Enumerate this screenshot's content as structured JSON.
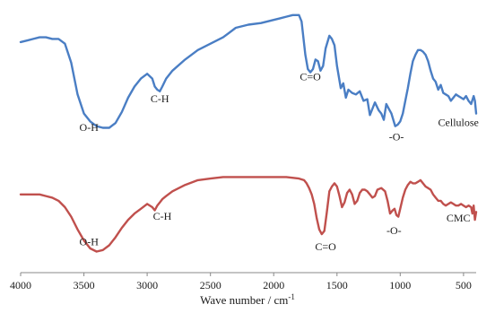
{
  "chart_data": {
    "type": "line",
    "title": "",
    "xlabel": "Wave number / cm",
    "xlabel_superscript": "-1",
    "ylabel": "",
    "xlim": [
      4000,
      400
    ],
    "x_reversed": true,
    "xticks": [
      4000,
      3500,
      3000,
      2500,
      2000,
      1500,
      1000,
      500
    ],
    "grid": false,
    "legend": "none",
    "series": [
      {
        "name": "Cellulose",
        "color": "#4a7ec4",
        "label_at": [
          560,
          0.22
        ],
        "x": [
          4000,
          3950,
          3900,
          3850,
          3800,
          3750,
          3700,
          3650,
          3600,
          3550,
          3500,
          3450,
          3400,
          3350,
          3300,
          3250,
          3200,
          3150,
          3100,
          3050,
          3000,
          2960,
          2940,
          2920,
          2900,
          2880,
          2850,
          2800,
          2700,
          2600,
          2500,
          2400,
          2300,
          2200,
          2100,
          2000,
          1950,
          1900,
          1850,
          1800,
          1780,
          1750,
          1730,
          1710,
          1690,
          1670,
          1650,
          1630,
          1610,
          1590,
          1560,
          1540,
          1520,
          1500,
          1470,
          1450,
          1430,
          1410,
          1380,
          1350,
          1320,
          1290,
          1260,
          1240,
          1200,
          1170,
          1150,
          1130,
          1110,
          1090,
          1070,
          1055,
          1040,
          1020,
          1000,
          980,
          960,
          940,
          920,
          900,
          880,
          860,
          840,
          820,
          800,
          780,
          760,
          740,
          720,
          700,
          680,
          660,
          640,
          620,
          600,
          580,
          560,
          540,
          520,
          500,
          480,
          460,
          440,
          420,
          410,
          400
        ],
        "y": [
          0.75,
          0.76,
          0.77,
          0.78,
          0.78,
          0.77,
          0.77,
          0.74,
          0.62,
          0.42,
          0.3,
          0.25,
          0.22,
          0.21,
          0.21,
          0.24,
          0.31,
          0.4,
          0.47,
          0.52,
          0.55,
          0.52,
          0.47,
          0.45,
          0.44,
          0.47,
          0.52,
          0.57,
          0.64,
          0.7,
          0.74,
          0.78,
          0.84,
          0.86,
          0.87,
          0.89,
          0.9,
          0.91,
          0.92,
          0.92,
          0.88,
          0.67,
          0.58,
          0.56,
          0.58,
          0.64,
          0.63,
          0.57,
          0.6,
          0.71,
          0.79,
          0.77,
          0.73,
          0.6,
          0.46,
          0.49,
          0.4,
          0.45,
          0.43,
          0.42,
          0.44,
          0.38,
          0.39,
          0.29,
          0.37,
          0.32,
          0.3,
          0.26,
          0.36,
          0.33,
          0.3,
          0.26,
          0.22,
          0.23,
          0.25,
          0.3,
          0.38,
          0.46,
          0.55,
          0.63,
          0.67,
          0.7,
          0.7,
          0.69,
          0.67,
          0.63,
          0.57,
          0.52,
          0.5,
          0.45,
          0.48,
          0.43,
          0.42,
          0.41,
          0.38,
          0.4,
          0.42,
          0.41,
          0.4,
          0.39,
          0.41,
          0.38,
          0.36,
          0.41,
          0.38,
          0.3
        ]
      },
      {
        "name": "CMC",
        "color": "#c0504d",
        "label_at": [
          560,
          -0.42
        ],
        "x": [
          4000,
          3950,
          3900,
          3850,
          3800,
          3750,
          3700,
          3650,
          3600,
          3550,
          3500,
          3450,
          3400,
          3350,
          3300,
          3250,
          3200,
          3150,
          3100,
          3050,
          3000,
          2960,
          2940,
          2920,
          2900,
          2880,
          2850,
          2800,
          2700,
          2600,
          2500,
          2400,
          2300,
          2200,
          2100,
          2000,
          1900,
          1800,
          1760,
          1740,
          1720,
          1700,
          1680,
          1660,
          1640,
          1620,
          1600,
          1580,
          1560,
          1540,
          1520,
          1500,
          1480,
          1460,
          1440,
          1420,
          1400,
          1380,
          1360,
          1340,
          1320,
          1300,
          1280,
          1260,
          1240,
          1220,
          1200,
          1180,
          1150,
          1120,
          1100,
          1080,
          1060,
          1045,
          1030,
          1015,
          1000,
          980,
          960,
          940,
          920,
          900,
          880,
          860,
          840,
          820,
          800,
          780,
          760,
          740,
          720,
          700,
          680,
          660,
          640,
          620,
          600,
          580,
          560,
          540,
          520,
          500,
          480,
          460,
          440,
          430,
          420,
          410,
          400
        ],
        "y": [
          -0.21,
          -0.21,
          -0.21,
          -0.21,
          -0.22,
          -0.23,
          -0.25,
          -0.29,
          -0.35,
          -0.43,
          -0.5,
          -0.55,
          -0.57,
          -0.56,
          -0.53,
          -0.48,
          -0.42,
          -0.37,
          -0.33,
          -0.3,
          -0.27,
          -0.29,
          -0.31,
          -0.28,
          -0.26,
          -0.24,
          -0.22,
          -0.19,
          -0.15,
          -0.12,
          -0.11,
          -0.1,
          -0.1,
          -0.1,
          -0.1,
          -0.1,
          -0.1,
          -0.11,
          -0.12,
          -0.14,
          -0.17,
          -0.21,
          -0.27,
          -0.36,
          -0.43,
          -0.46,
          -0.44,
          -0.32,
          -0.19,
          -0.16,
          -0.14,
          -0.16,
          -0.22,
          -0.29,
          -0.26,
          -0.2,
          -0.18,
          -0.21,
          -0.27,
          -0.25,
          -0.2,
          -0.18,
          -0.18,
          -0.19,
          -0.21,
          -0.23,
          -0.22,
          -0.18,
          -0.17,
          -0.19,
          -0.25,
          -0.33,
          -0.31,
          -0.3,
          -0.34,
          -0.35,
          -0.3,
          -0.23,
          -0.18,
          -0.15,
          -0.13,
          -0.14,
          -0.14,
          -0.13,
          -0.12,
          -0.14,
          -0.16,
          -0.17,
          -0.18,
          -0.21,
          -0.23,
          -0.25,
          -0.25,
          -0.27,
          -0.28,
          -0.27,
          -0.26,
          -0.27,
          -0.28,
          -0.28,
          -0.27,
          -0.28,
          -0.29,
          -0.28,
          -0.29,
          -0.33,
          -0.28,
          -0.37,
          -0.32
        ]
      }
    ],
    "annotations": [
      {
        "text": "O-H",
        "x": 3460,
        "y": 0.19,
        "series": "Cellulose"
      },
      {
        "text": "C-H",
        "x": 2900,
        "y": 0.37,
        "series": "Cellulose"
      },
      {
        "text": "C=O",
        "x": 1710,
        "y": 0.51,
        "series": "Cellulose"
      },
      {
        "text": "-O-",
        "x": 1030,
        "y": 0.13,
        "series": "Cellulose"
      },
      {
        "text": "Cellulose",
        "x": 540,
        "y": 0.22,
        "series": "Cellulose"
      },
      {
        "text": "O-H",
        "x": 3460,
        "y": -0.53,
        "series": "CMC"
      },
      {
        "text": "C-H",
        "x": 2880,
        "y": -0.37,
        "series": "CMC"
      },
      {
        "text": "C=O",
        "x": 1590,
        "y": -0.56,
        "series": "CMC"
      },
      {
        "text": "-O-",
        "x": 1050,
        "y": -0.46,
        "series": "CMC"
      },
      {
        "text": "CMC",
        "x": 540,
        "y": -0.38,
        "series": "CMC"
      }
    ],
    "ylim": [
      -0.68,
      0.97
    ]
  }
}
